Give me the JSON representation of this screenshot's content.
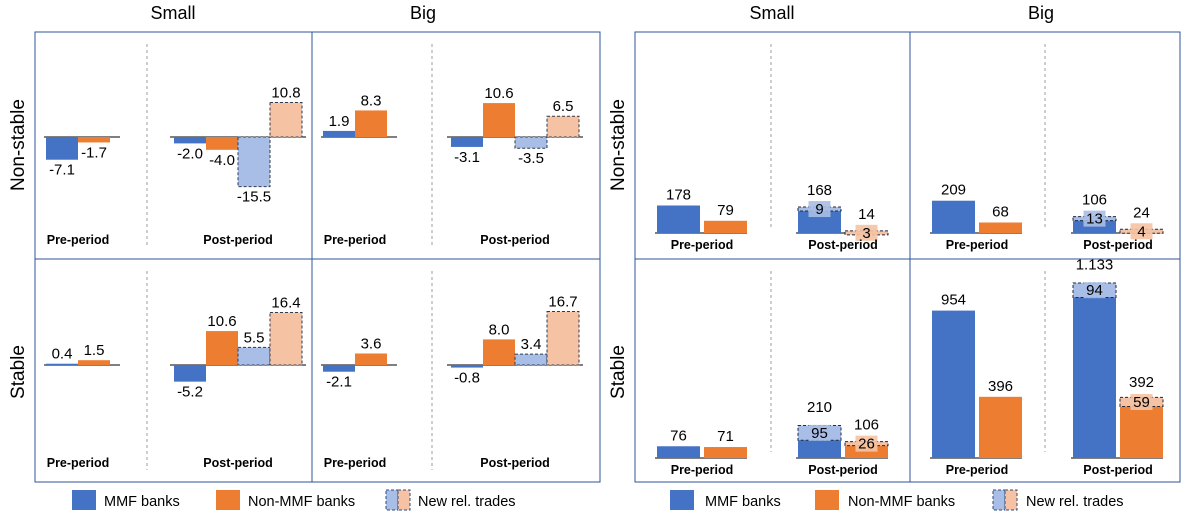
{
  "colors": {
    "mmf": "#4472C4",
    "non_mmf": "#ED7D31",
    "new_mmf": "#A8BEE6",
    "new_non_mmf": "#F5C3A4",
    "frame": "#2F5597",
    "axis": "#000000",
    "divider": "#9E9E9E"
  },
  "legend": {
    "mmf": "MMF banks",
    "non_mmf": "Non-MMF banks",
    "new": "New rel. trades"
  },
  "chart_data": [
    {
      "type": "bar",
      "col_headers": [
        "Small",
        "Big"
      ],
      "row_headers": [
        "Non-stable",
        "Stable"
      ],
      "period_labels": [
        "Pre-period",
        "Post-period"
      ],
      "series": [
        {
          "name": "MMF banks"
        },
        {
          "name": "Non-MMF banks"
        },
        {
          "name": "New rel. trades"
        }
      ],
      "panels": [
        {
          "row": "Non-stable",
          "col": "Small",
          "pre": [
            {
              "series": "MMF banks",
              "value": -7.1,
              "label": "-7.1"
            },
            {
              "series": "Non-MMF banks",
              "value": -1.7,
              "label": "-1.7"
            }
          ],
          "post": [
            {
              "series": "MMF banks",
              "value": -2.0,
              "label": "-2.0"
            },
            {
              "series": "Non-MMF banks",
              "value": -4.0,
              "label": "-4.0"
            },
            {
              "series": "New rel. trades MMF",
              "value": -15.5,
              "label": "-15.5"
            },
            {
              "series": "New rel. trades Non-MMF",
              "value": 10.8,
              "label": "10.8"
            }
          ]
        },
        {
          "row": "Non-stable",
          "col": "Big",
          "pre": [
            {
              "series": "MMF banks",
              "value": 1.9,
              "label": "1.9"
            },
            {
              "series": "Non-MMF banks",
              "value": 8.3,
              "label": "8.3"
            }
          ],
          "post": [
            {
              "series": "MMF banks",
              "value": -3.1,
              "label": "-3.1"
            },
            {
              "series": "Non-MMF banks",
              "value": 10.6,
              "label": "10.6"
            },
            {
              "series": "New rel. trades MMF",
              "value": -3.5,
              "label": "-3.5"
            },
            {
              "series": "New rel. trades Non-MMF",
              "value": 6.5,
              "label": "6.5"
            }
          ]
        },
        {
          "row": "Stable",
          "col": "Small",
          "pre": [
            {
              "series": "MMF banks",
              "value": 0.4,
              "label": "0.4"
            },
            {
              "series": "Non-MMF banks",
              "value": 1.5,
              "label": "1.5"
            }
          ],
          "post": [
            {
              "series": "MMF banks",
              "value": -5.2,
              "label": "-5.2"
            },
            {
              "series": "Non-MMF banks",
              "value": 10.6,
              "label": "10.6"
            },
            {
              "series": "New rel. trades MMF",
              "value": 5.5,
              "label": "5.5"
            },
            {
              "series": "New rel. trades Non-MMF",
              "value": 16.4,
              "label": "16.4"
            }
          ]
        },
        {
          "row": "Stable",
          "col": "Big",
          "pre": [
            {
              "series": "MMF banks",
              "value": -2.1,
              "label": "-2.1"
            },
            {
              "series": "Non-MMF banks",
              "value": 3.6,
              "label": "3.6"
            }
          ],
          "post": [
            {
              "series": "MMF banks",
              "value": -0.8,
              "label": "-0.8"
            },
            {
              "series": "Non-MMF banks",
              "value": 8.0,
              "label": "8.0"
            },
            {
              "series": "New rel. trades MMF",
              "value": 3.4,
              "label": "3.4"
            },
            {
              "series": "New rel. trades Non-MMF",
              "value": 16.7,
              "label": "16.7"
            }
          ]
        }
      ]
    },
    {
      "type": "bar",
      "col_headers": [
        "Small",
        "Big"
      ],
      "row_headers": [
        "Non-stable",
        "Stable"
      ],
      "period_labels": [
        "Pre-period",
        "Post-period"
      ],
      "series": [
        {
          "name": "MMF banks"
        },
        {
          "name": "Non-MMF banks"
        },
        {
          "name": "New rel. trades"
        }
      ],
      "panels": [
        {
          "row": "Non-stable",
          "col": "Small",
          "pre": [
            {
              "series": "MMF banks",
              "value": 178,
              "label": "178"
            },
            {
              "series": "Non-MMF banks",
              "value": 79,
              "label": "79"
            }
          ],
          "post": [
            {
              "series": "MMF banks",
              "value": 168,
              "label": "168",
              "new": 9,
              "new_label": "9"
            },
            {
              "series": "Non-MMF banks",
              "value": 14,
              "label": "14",
              "new": 3,
              "new_label": "3"
            }
          ]
        },
        {
          "row": "Non-stable",
          "col": "Big",
          "pre": [
            {
              "series": "MMF banks",
              "value": 209,
              "label": "209"
            },
            {
              "series": "Non-MMF banks",
              "value": 68,
              "label": "68"
            }
          ],
          "post": [
            {
              "series": "MMF banks",
              "value": 106,
              "label": "106",
              "new": 13,
              "new_label": "13"
            },
            {
              "series": "Non-MMF banks",
              "value": 24,
              "label": "24",
              "new": 4,
              "new_label": "4"
            }
          ]
        },
        {
          "row": "Stable",
          "col": "Small",
          "pre": [
            {
              "series": "MMF banks",
              "value": 76,
              "label": "76"
            },
            {
              "series": "Non-MMF banks",
              "value": 71,
              "label": "71"
            }
          ],
          "post": [
            {
              "series": "MMF banks",
              "value": 210,
              "label": "210",
              "new": 95,
              "new_label": "95"
            },
            {
              "series": "Non-MMF banks",
              "value": 106,
              "label": "106",
              "new": 26,
              "new_label": "26"
            }
          ]
        },
        {
          "row": "Stable",
          "col": "Big",
          "pre": [
            {
              "series": "MMF banks",
              "value": 954,
              "label": "954"
            },
            {
              "series": "Non-MMF banks",
              "value": 396,
              "label": "396"
            }
          ],
          "post": [
            {
              "series": "MMF banks",
              "value": 1133,
              "label": "1.133",
              "new": 94,
              "new_label": "94"
            },
            {
              "series": "Non-MMF banks",
              "value": 392,
              "label": "392",
              "new": 59,
              "new_label": "59"
            }
          ]
        }
      ]
    }
  ]
}
